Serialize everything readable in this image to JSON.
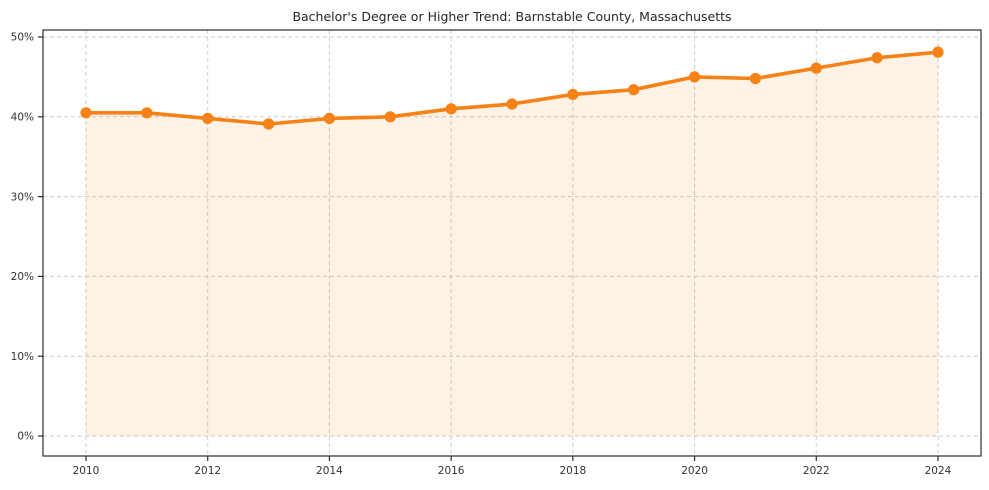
{
  "chart_data": {
    "type": "line",
    "title": "Bachelor's Degree or Higher Trend: Barnstable County, Massachusetts",
    "x": [
      2010,
      2011,
      2012,
      2013,
      2014,
      2015,
      2016,
      2017,
      2018,
      2019,
      2020,
      2021,
      2022,
      2023,
      2024
    ],
    "values": [
      40.5,
      40.5,
      39.8,
      39.1,
      39.8,
      40.0,
      41.0,
      41.6,
      42.8,
      43.4,
      45.0,
      44.8,
      46.1,
      47.4,
      48.1
    ],
    "xlabel": "",
    "ylabel": "",
    "x_ticks": [
      2010,
      2012,
      2014,
      2016,
      2018,
      2020,
      2022,
      2024
    ],
    "x_tick_labels": [
      "2010",
      "2012",
      "2014",
      "2016",
      "2018",
      "2020",
      "2022",
      "2024"
    ],
    "y_ticks": [
      0,
      10,
      20,
      30,
      40,
      50
    ],
    "y_tick_labels": [
      "0%",
      "10%",
      "20%",
      "30%",
      "40%",
      "50%"
    ],
    "ylim": [
      -2.5,
      51
    ],
    "grid": true,
    "legend": false,
    "area_fill": true,
    "colors": {
      "line": "#f58216",
      "marker": "#f58216",
      "fill": "#fdf0e2",
      "grid": "#cccccc",
      "axis": "#2b2b2b",
      "text": "#333333",
      "title": "#262626",
      "background": "#ffffff"
    }
  }
}
